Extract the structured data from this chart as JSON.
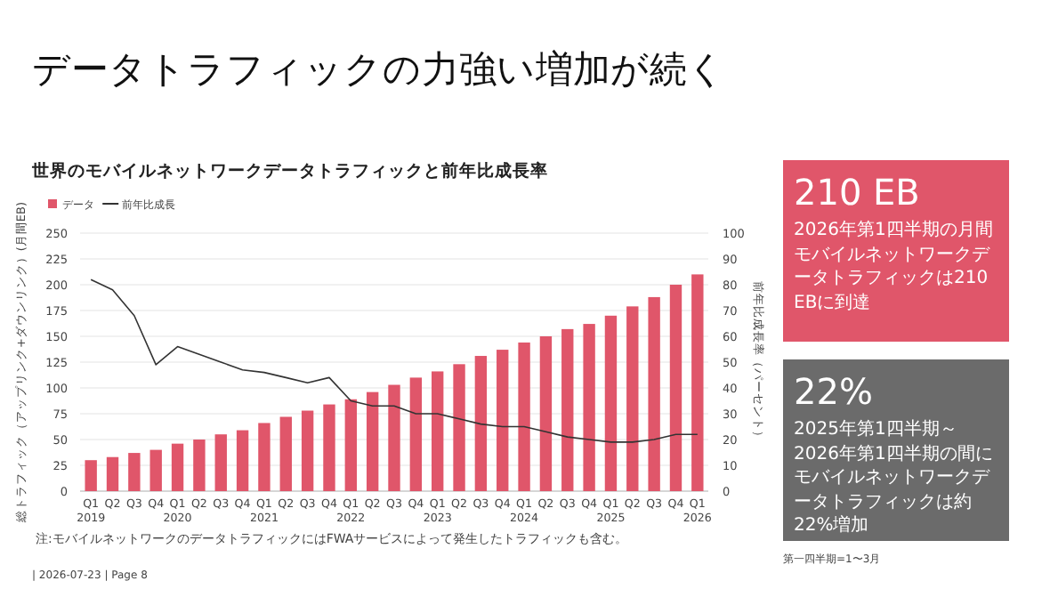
{
  "chart_data": [
    {
      "type": "bar",
      "title": "データトラフィックの力強い増加が続く",
      "subtitle": "世界のモバイルネットワークデータトラフィックと前年比成長率",
      "ylabel": "総トラフィック（アップリンク+ダウンリンク）(月間EB)",
      "y2label": "前年比成長率（パーセント）",
      "categories": [
        "Q1\n2019",
        "Q2",
        "Q3",
        "Q4",
        "Q1\n2020",
        "Q2",
        "Q3",
        "Q4",
        "Q1\n2021",
        "Q2",
        "Q3",
        "Q4",
        "Q1\n2022",
        "Q2",
        "Q3",
        "Q4",
        "Q1\n2023",
        "Q2",
        "Q3",
        "Q4",
        "Q1\n2024",
        "Q2",
        "Q3",
        "Q4",
        "Q1\n2025",
        "Q2",
        "Q3",
        "Q4",
        "Q1\n2026"
      ],
      "series": [
        {
          "name": "データ",
          "type": "bar",
          "color": "#e0566a",
          "values": [
            30,
            33,
            37,
            40,
            46,
            50,
            55,
            59,
            66,
            72,
            78,
            84,
            89,
            96,
            103,
            110,
            116,
            123,
            131,
            137,
            144,
            150,
            157,
            162,
            170,
            179,
            188,
            200,
            210
          ]
        },
        {
          "name": "前年比成長",
          "type": "line",
          "axis": "y2",
          "color": "#333333",
          "values": [
            82,
            78,
            68,
            49,
            56,
            53,
            50,
            47,
            46,
            44,
            42,
            44,
            35,
            33,
            33,
            30,
            30,
            28,
            26,
            25,
            25,
            23,
            21,
            20,
            19,
            19,
            20,
            22,
            22
          ]
        }
      ],
      "ylim": [
        0,
        250
      ],
      "yticks": [
        0,
        25,
        50,
        75,
        100,
        125,
        150,
        175,
        200,
        225,
        250
      ],
      "y2lim": [
        0,
        100
      ],
      "y2ticks": [
        0,
        10,
        20,
        30,
        40,
        50,
        60,
        70,
        80,
        90,
        100
      ],
      "grid": "y",
      "legend": "top left",
      "marker": "none",
      "line_style": "solid",
      "annotations": [
        "注:モバイルネットワークのデータトラフィックにはFWAサービスによって発生したトラフィックも含む。",
        "| 2026-07-23 | Page 8"
      ]
    },
    {
      "type": "other",
      "title": "210 EB",
      "annotations": [
        "2026年第1四半期の月間モバイルネットワークデータトラフィックは210 EBに到達"
      ]
    },
    {
      "type": "other",
      "title": "22%",
      "annotations": [
        "2025年第1四半期～2026年第1四半期の間にモバイルネットワークデータトラフィックは約22%増加",
        "第一四半期=1〜3月"
      ]
    }
  ]
}
